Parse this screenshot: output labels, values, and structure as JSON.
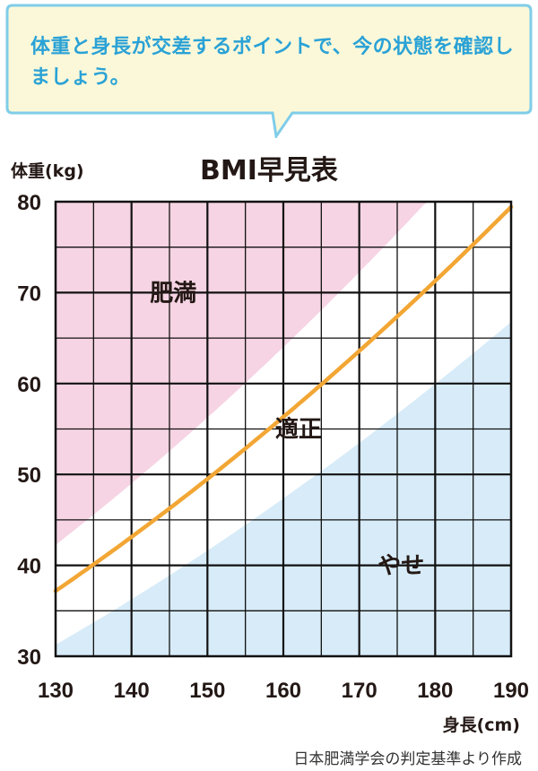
{
  "bubble": {
    "text": "体重と身長が交差するポイントで、今の状態を確認しましょう。"
  },
  "source_note": "日本肥満学会の判定基準より作成",
  "colors": {
    "bubble_border": "#7fcde9",
    "bubble_fill": "#fbf8d9",
    "bubble_text": "#2aa2d6",
    "obese_fill": "#f6d4e3",
    "normal_fill": "#ffffff",
    "thin_fill": "#d7ebf8",
    "line": "#f2a634",
    "grid": "#111111"
  },
  "chart_data": {
    "type": "area",
    "title": "BMI早見表",
    "ylabel": "体重(kg)",
    "xlabel": "身長(cm)",
    "xlim": [
      130,
      190
    ],
    "ylim": [
      30,
      80
    ],
    "xticks": [
      130,
      140,
      150,
      160,
      170,
      180,
      190
    ],
    "yticks": [
      30,
      40,
      50,
      60,
      70,
      80
    ],
    "grid": true,
    "series": [
      {
        "name": "肥満",
        "bmi": 25,
        "role": "upper_boundary"
      },
      {
        "name": "適正",
        "bmi": 22,
        "role": "line"
      },
      {
        "name": "やせ",
        "bmi": 18.5,
        "role": "lower_boundary"
      }
    ],
    "annotations": [
      "肥満",
      "適正",
      "やせ"
    ]
  }
}
